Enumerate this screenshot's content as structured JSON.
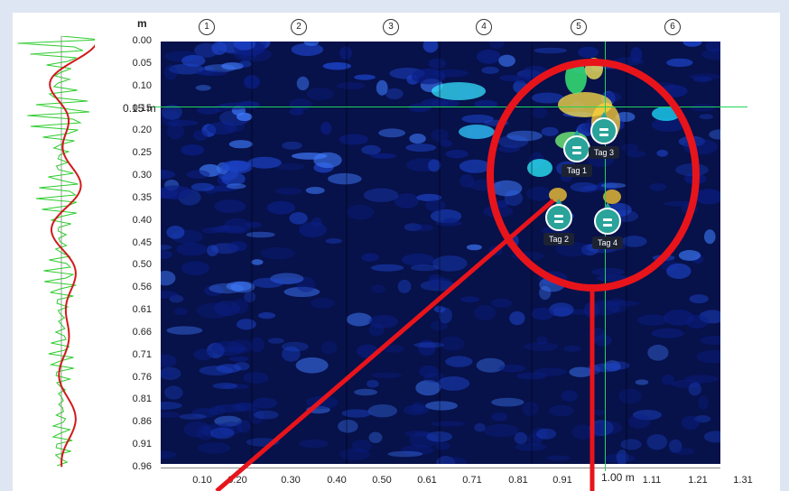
{
  "app": {
    "depth_unit": "m",
    "cursor_depth_label": "0.15 m",
    "cursor_x_label": "1.00 m"
  },
  "channels": [
    "1",
    "2",
    "3",
    "4",
    "5",
    "6"
  ],
  "y_ticks": [
    "0.00",
    "0.05",
    "0.10",
    "0.15",
    "0.20",
    "0.25",
    "0.30",
    "0.35",
    "0.40",
    "0.45",
    "0.50",
    "0.56",
    "0.61",
    "0.66",
    "0.71",
    "0.76",
    "0.81",
    "0.86",
    "0.91",
    "0.96"
  ],
  "x_ticks": [
    "0.10",
    "0.20",
    "0.30",
    "0.40",
    "0.50",
    "0.61",
    "0.71",
    "0.81",
    "0.91",
    "1.11",
    "1.21",
    "1.31"
  ],
  "tags": [
    {
      "label": "Tag 1"
    },
    {
      "label": "Tag 2"
    },
    {
      "label": "Tag 3"
    },
    {
      "label": "Tag 4"
    }
  ],
  "colors": {
    "background": "#dfe6f3",
    "radar_base": "#07114a",
    "crosshair": "#22d35a",
    "annotation": "#e8141b",
    "trace_raw": "#2ecc2e",
    "trace_envelope": "#d11a1a",
    "tag_pin": "#2aa39a"
  }
}
